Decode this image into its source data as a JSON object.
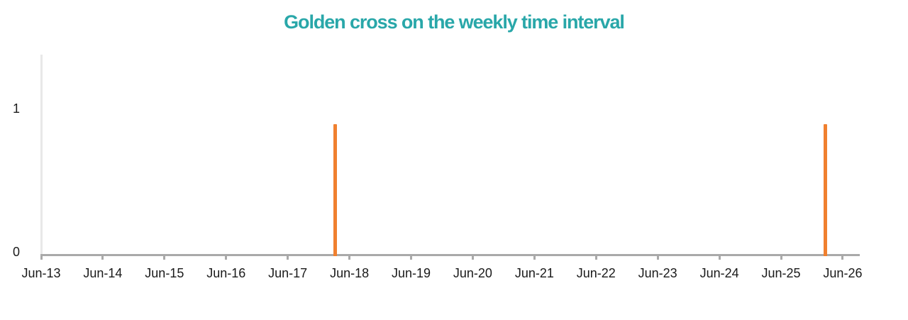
{
  "chart_data": {
    "type": "bar",
    "title": "Golden cross on the weekly time interval",
    "subtitle": "",
    "xlabel": "",
    "ylabel": "",
    "x_tick_labels": [
      "Jun-13",
      "Jun-14",
      "Jun-15",
      "Jun-16",
      "Jun-17",
      "Jun-18",
      "Jun-19",
      "Jun-20",
      "Jun-21",
      "Jun-22",
      "Jun-23",
      "Jun-24",
      "Jun-25",
      "Jun-26"
    ],
    "y_ticks": [
      {
        "value": 0,
        "label": "0"
      },
      {
        "value": 1,
        "label": "1"
      }
    ],
    "ylim": [
      0,
      1.38
    ],
    "grid": "off",
    "legend": "none",
    "bars": [
      {
        "x_units": 4.77,
        "value": 0.9,
        "position_note": "between Jun-17 and Jun-18"
      },
      {
        "x_units": 12.72,
        "value": 0.9,
        "position_note": "between Jun-25 and Jun-26"
      }
    ],
    "colors": {
      "title": "#29a7a9",
      "bar": "#f0802f",
      "axis": "#a9a9a9",
      "y_gridline": "#e8e8e8",
      "tick_label": "#1a1a1a"
    }
  }
}
